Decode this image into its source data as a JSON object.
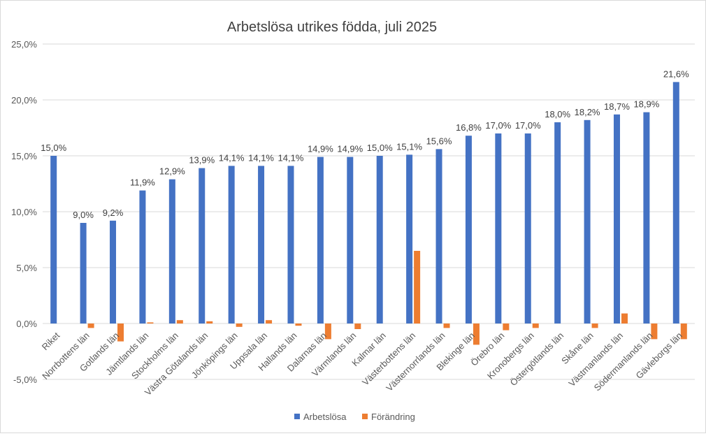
{
  "chart_data": {
    "type": "bar",
    "title": "Arbetslösa utrikes födda, juli 2025",
    "xlabel": "",
    "ylabel": "",
    "ylim": [
      -5,
      25
    ],
    "yticks": [
      25,
      20,
      15,
      10,
      5,
      0,
      -5
    ],
    "ytick_labels": [
      "25,0%",
      "20,0%",
      "15,0%",
      "10,0%",
      "5,0%",
      "0,0%",
      "-5,0%"
    ],
    "grid": true,
    "legend_position": "bottom",
    "categories": [
      "Riket",
      "Norrbottens län",
      "Gotlands län",
      "Jämtlands län",
      "Stockholms län",
      "Västra Götalands län",
      "Jönköpings län",
      "Uppsala län",
      "Hallands län",
      "Dalarnas län",
      "Värmlands län",
      "Kalmar län",
      "Västerbottens län",
      "Västernorrlands län",
      "Blekinge län",
      "Örebro län",
      "Kronobergs län",
      "Östergötlands län",
      "Skåne län",
      "Västmanlands län",
      "Södermanlands län",
      "Gävleborgs län"
    ],
    "series": [
      {
        "name": "Arbetslösa",
        "color": "#4472C4",
        "values": [
          15.0,
          9.0,
          9.2,
          11.9,
          12.9,
          13.9,
          14.1,
          14.1,
          14.1,
          14.9,
          14.9,
          15.0,
          15.1,
          15.6,
          16.8,
          17.0,
          17.0,
          18.0,
          18.2,
          18.7,
          18.9,
          21.6
        ],
        "labels": [
          "15,0%",
          "9,0%",
          "9,2%",
          "11,9%",
          "12,9%",
          "13,9%",
          "14,1%",
          "14,1%",
          "14,1%",
          "14,9%",
          "14,9%",
          "15,0%",
          "15,1%",
          "15,6%",
          "16,8%",
          "17,0%",
          "17,0%",
          "18,0%",
          "18,2%",
          "18,7%",
          "18,9%",
          "21,6%"
        ]
      },
      {
        "name": "Förändring",
        "color": "#ED7D31",
        "values": [
          0.0,
          -0.4,
          -1.6,
          0.1,
          0.3,
          0.2,
          -0.3,
          0.3,
          -0.2,
          -1.4,
          -0.5,
          0.0,
          6.5,
          -0.4,
          -1.9,
          -0.6,
          -0.4,
          0.0,
          -0.4,
          0.9,
          -1.4,
          -1.4
        ]
      }
    ]
  }
}
